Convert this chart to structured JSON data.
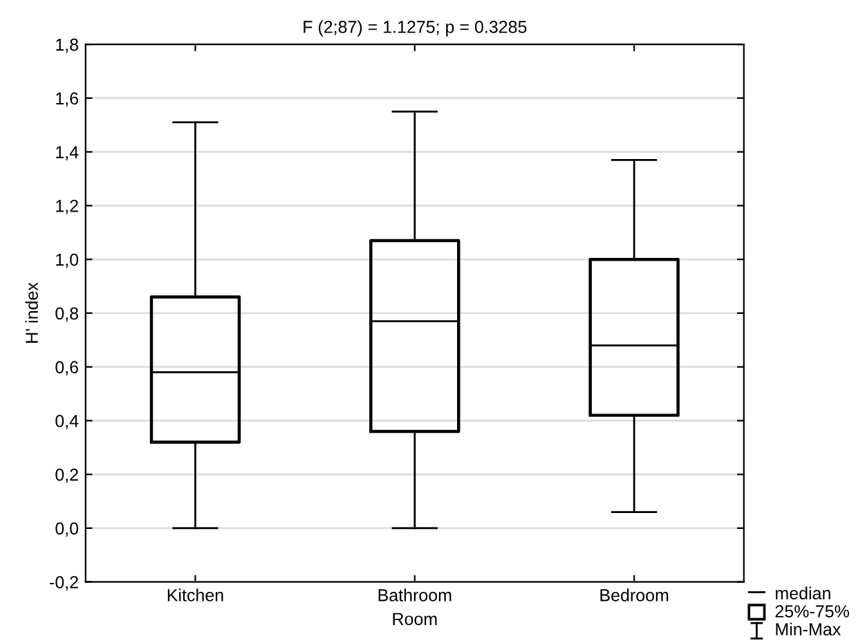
{
  "chart_data": {
    "type": "box",
    "title": "F (2;87) = 1.1275; p = 0.3285",
    "xlabel": "Room",
    "ylabel": "H' index",
    "categories": [
      "Kitchen",
      "Bathroom",
      "Bedroom"
    ],
    "series": [
      {
        "color": "#000000",
        "boxes": [
          {
            "low": 0.0,
            "q1": 0.32,
            "median": 0.58,
            "q3": 0.86,
            "high": 1.51
          },
          {
            "low": 0.0,
            "q1": 0.36,
            "median": 0.77,
            "q3": 1.07,
            "high": 1.55
          },
          {
            "low": 0.06,
            "q1": 0.42,
            "median": 0.68,
            "q3": 1.0,
            "high": 1.37
          }
        ]
      }
    ],
    "ylim": [
      -0.2,
      1.8
    ],
    "yticks": [
      {
        "value": -0.2,
        "label": "-0,2"
      },
      {
        "value": 0.0,
        "label": "0,0"
      },
      {
        "value": 0.2,
        "label": "0,2"
      },
      {
        "value": 0.4,
        "label": "0,4"
      },
      {
        "value": 0.6,
        "label": "0,6"
      },
      {
        "value": 0.8,
        "label": "0,8"
      },
      {
        "value": 1.0,
        "label": "1,0"
      },
      {
        "value": 1.2,
        "label": "1,2"
      },
      {
        "value": 1.4,
        "label": "1,4"
      },
      {
        "value": 1.6,
        "label": "1,6"
      },
      {
        "value": 1.8,
        "label": "1,8"
      }
    ],
    "grid": "y",
    "annotations": [
      "median",
      "25%-75%",
      "Min-Max"
    ]
  }
}
